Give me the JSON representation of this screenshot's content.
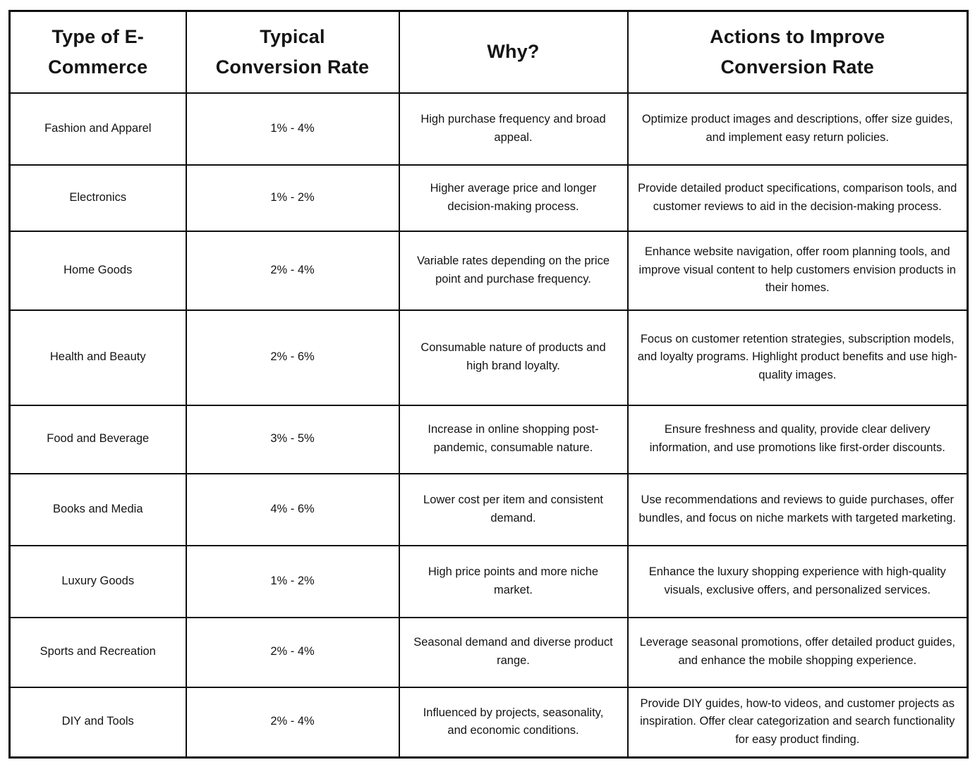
{
  "colors": {
    "background": "#ffffff",
    "border": "#0e0e0e",
    "text": "#141414"
  },
  "chart_data": {
    "type": "table",
    "columns": [
      "Type of E-\nCommerce",
      "Typical\nConversion Rate",
      "Why?",
      "Actions to Improve\nConversion Rate"
    ],
    "rows": [
      {
        "type": "Fashion and Apparel",
        "rate": "1% - 4%",
        "why": "High purchase frequency and broad appeal.",
        "actions": "Optimize product images and descriptions, offer size guides, and implement easy return policies."
      },
      {
        "type": "Electronics",
        "rate": "1% - 2%",
        "why": "Higher average price and longer decision-making process.",
        "actions": "Provide detailed product specifications, comparison tools, and customer reviews to aid in the decision-making process."
      },
      {
        "type": "Home Goods",
        "rate": "2% - 4%",
        "why": "Variable rates depending on the price point and purchase frequency.",
        "actions": "Enhance website navigation, offer room planning tools, and improve visual content to help customers envision products in their homes."
      },
      {
        "type": "Health and Beauty",
        "rate": "2% - 6%",
        "why": "Consumable nature of products and high brand loyalty.",
        "actions": "Focus on customer retention strategies, subscription models, and loyalty programs. Highlight product benefits and use high-quality images."
      },
      {
        "type": "Food and Beverage",
        "rate": "3% - 5%",
        "why": "Increase in online shopping post-pandemic, consumable nature.",
        "actions": "Ensure freshness and quality, provide clear delivery information, and use promotions like first-order discounts."
      },
      {
        "type": "Books and Media",
        "rate": "4% - 6%",
        "why": "Lower cost per item and consistent demand.",
        "actions": "Use recommendations and reviews to guide purchases, offer bundles, and focus on niche markets with targeted marketing."
      },
      {
        "type": "Luxury Goods",
        "rate": "1% - 2%",
        "why": "High price points and more niche market.",
        "actions": "Enhance the luxury shopping experience with high-quality visuals, exclusive offers, and personalized services."
      },
      {
        "type": "Sports and Recreation",
        "rate": "2% - 4%",
        "why": "Seasonal demand and diverse product range.",
        "actions": "Leverage seasonal promotions, offer detailed product guides, and enhance the mobile shopping experience."
      },
      {
        "type": "DIY and Tools",
        "rate": "2% - 4%",
        "why": "Influenced by projects, seasonality, and economic conditions.",
        "actions": "Provide DIY guides, how-to videos, and customer projects as inspiration. Offer clear categorization and search functionality for easy product finding."
      }
    ]
  }
}
